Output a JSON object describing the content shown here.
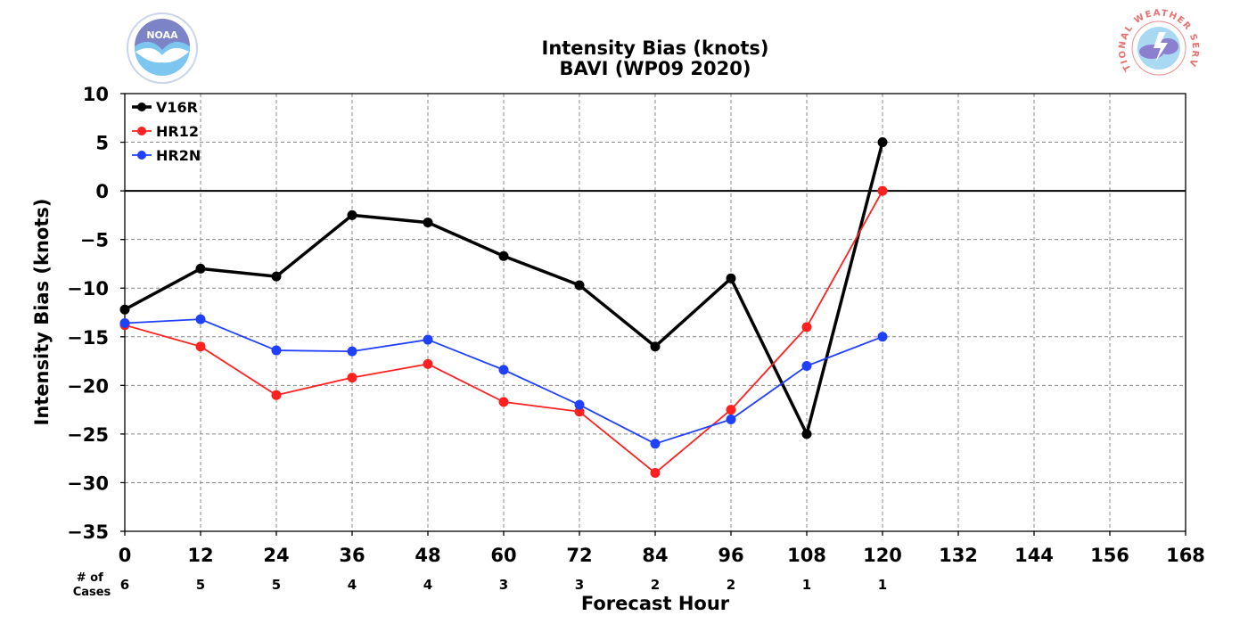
{
  "chart_data": {
    "type": "line",
    "title": "Intensity Bias (knots)",
    "subtitle": "BAVI (WP09 2020)",
    "xlabel": "Forecast Hour",
    "ylabel": "Intensity Bias (knots)",
    "xlim": [
      0,
      168
    ],
    "ylim": [
      -35,
      10
    ],
    "x_ticks": [
      0,
      12,
      24,
      36,
      48,
      60,
      72,
      84,
      96,
      108,
      120,
      132,
      144,
      156,
      168
    ],
    "y_ticks": [
      10,
      5,
      0,
      -5,
      -10,
      -15,
      -20,
      -25,
      -30,
      -35
    ],
    "grid": true,
    "zero_line": true,
    "legend_position": "top-left",
    "cases_label": "# of\nCases",
    "cases": [
      {
        "x": 0,
        "n": "6"
      },
      {
        "x": 12,
        "n": "5"
      },
      {
        "x": 24,
        "n": "5"
      },
      {
        "x": 36,
        "n": "4"
      },
      {
        "x": 48,
        "n": "4"
      },
      {
        "x": 60,
        "n": "3"
      },
      {
        "x": 72,
        "n": "3"
      },
      {
        "x": 84,
        "n": "2"
      },
      {
        "x": 96,
        "n": "2"
      },
      {
        "x": 108,
        "n": "1"
      },
      {
        "x": 120,
        "n": "1"
      }
    ],
    "series": [
      {
        "name": "V16R",
        "color": "#000000",
        "x": [
          0,
          12,
          24,
          36,
          48,
          60,
          72,
          84,
          96,
          108,
          120
        ],
        "values": [
          -12.2,
          -8.0,
          -8.8,
          -2.5,
          -3.25,
          -6.7,
          -9.7,
          -16.0,
          -9.0,
          -25.0,
          5.0
        ]
      },
      {
        "name": "HR12",
        "color": "#ff2020",
        "x": [
          0,
          12,
          24,
          36,
          48,
          60,
          72,
          84,
          96,
          108,
          120
        ],
        "values": [
          -13.8,
          -16.0,
          -21.0,
          -19.2,
          -17.8,
          -21.7,
          -22.7,
          -29.0,
          -22.5,
          -14.0,
          0.0
        ]
      },
      {
        "name": "HR2N",
        "color": "#2040ff",
        "x": [
          0,
          12,
          24,
          36,
          48,
          60,
          72,
          84,
          96,
          108,
          120
        ],
        "values": [
          -13.6,
          -13.2,
          -16.4,
          -16.5,
          -15.3,
          -18.4,
          -22.0,
          -26.0,
          -23.5,
          -18.0,
          -15.0
        ]
      }
    ]
  },
  "logos": {
    "noaa": {
      "label": "NOAA",
      "icon": "noaa-logo-icon"
    },
    "nws": {
      "label": "NATIONAL WEATHER SERVICE",
      "icon": "nws-logo-icon"
    }
  }
}
